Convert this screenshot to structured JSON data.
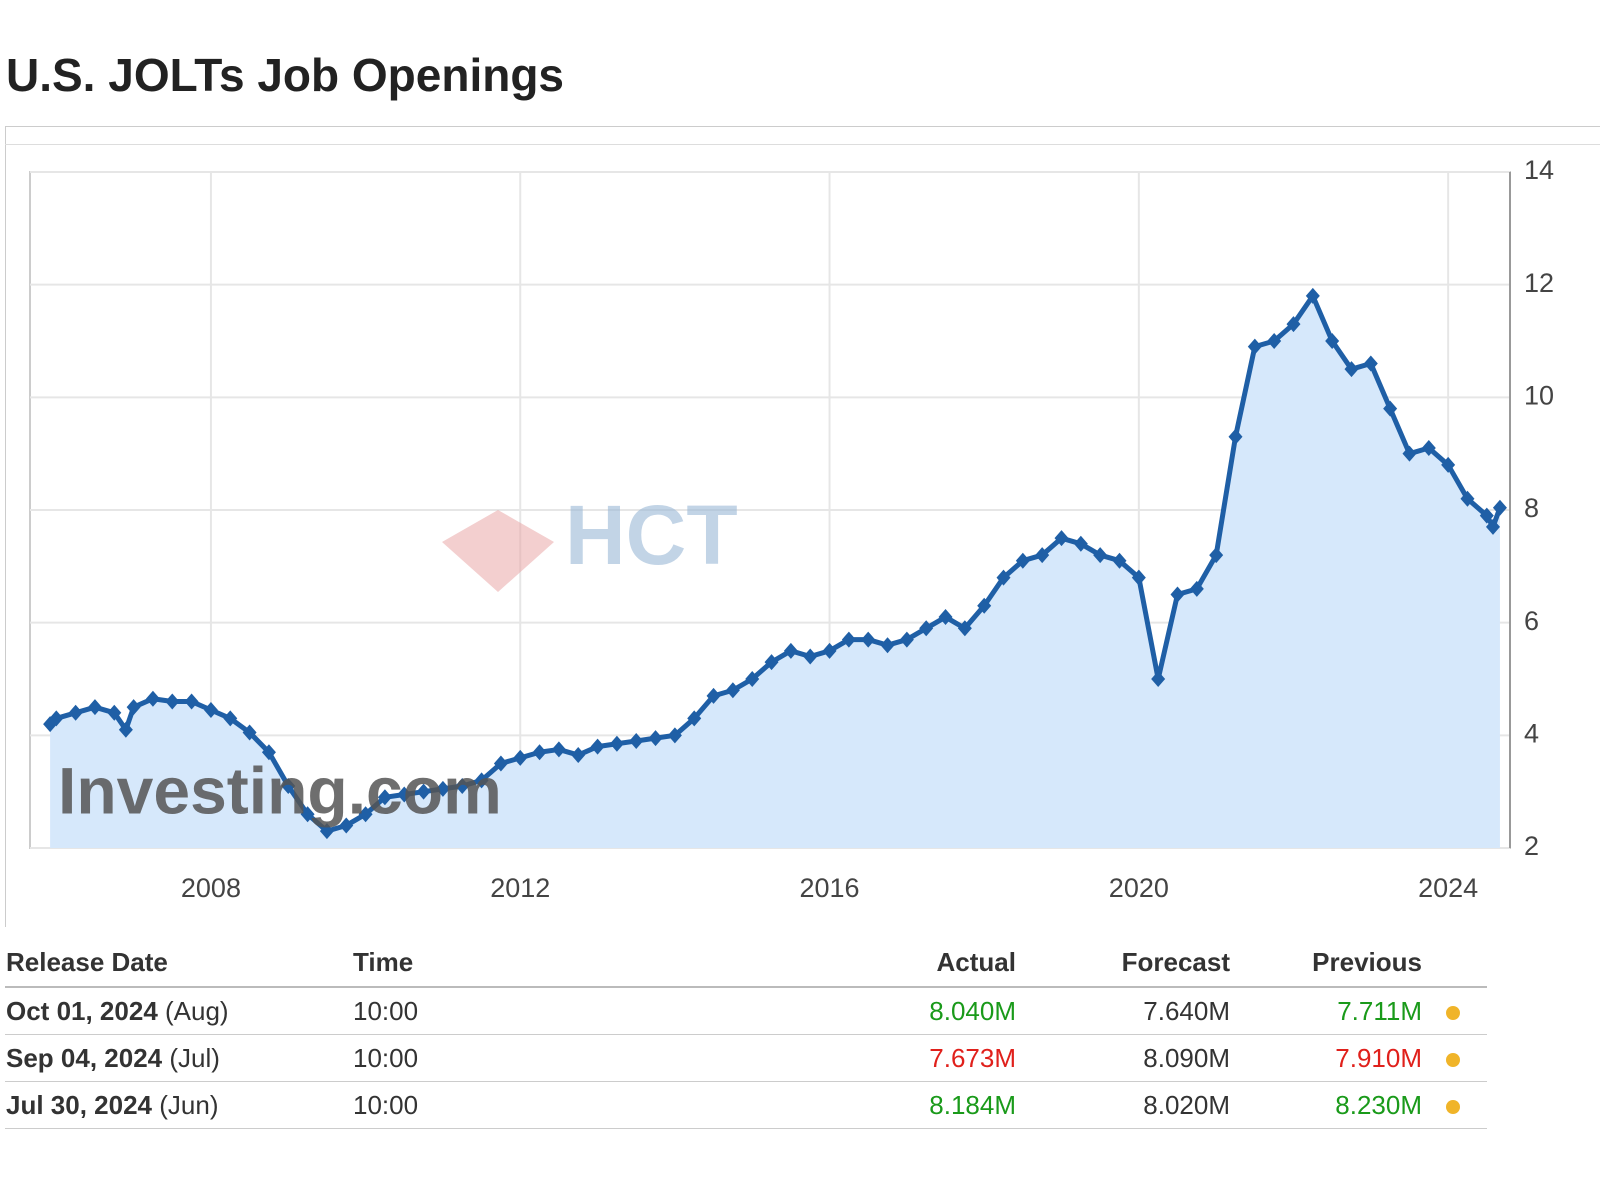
{
  "page_title": "U.S. JOLTs Job Openings",
  "chart_data": {
    "type": "line",
    "x": [
      2005.92,
      2006.0,
      2006.25,
      2006.5,
      2006.75,
      2006.9,
      2007.0,
      2007.25,
      2007.5,
      2007.75,
      2008.0,
      2008.25,
      2008.5,
      2008.75,
      2009.0,
      2009.25,
      2009.5,
      2009.75,
      2010.0,
      2010.25,
      2010.5,
      2010.75,
      2011.0,
      2011.25,
      2011.5,
      2011.75,
      2012.0,
      2012.25,
      2012.5,
      2012.75,
      2013.0,
      2013.25,
      2013.5,
      2013.75,
      2014.0,
      2014.25,
      2014.5,
      2014.75,
      2015.0,
      2015.25,
      2015.5,
      2015.75,
      2016.0,
      2016.25,
      2016.5,
      2016.75,
      2017.0,
      2017.25,
      2017.5,
      2017.75,
      2018.0,
      2018.25,
      2018.5,
      2018.75,
      2019.0,
      2019.25,
      2019.5,
      2019.75,
      2020.0,
      2020.25,
      2020.5,
      2020.75,
      2021.0,
      2021.25,
      2021.5,
      2021.75,
      2022.0,
      2022.25,
      2022.5,
      2022.75,
      2023.0,
      2023.25,
      2023.5,
      2023.75,
      2024.0,
      2024.25,
      2024.5,
      2024.58,
      2024.67
    ],
    "series": [
      {
        "name": "Job Openings",
        "color": "#1f5fa6",
        "fill": "#d6e8fb",
        "values": [
          4.2,
          4.3,
          4.4,
          4.5,
          4.4,
          4.1,
          4.5,
          4.65,
          4.6,
          4.6,
          4.45,
          4.3,
          4.05,
          3.7,
          3.1,
          2.6,
          2.3,
          2.4,
          2.6,
          2.9,
          2.95,
          3.0,
          3.05,
          3.1,
          3.2,
          3.5,
          3.6,
          3.7,
          3.75,
          3.65,
          3.8,
          3.85,
          3.9,
          3.95,
          4.0,
          4.3,
          4.7,
          4.8,
          5.0,
          5.3,
          5.5,
          5.4,
          5.5,
          5.7,
          5.7,
          5.6,
          5.7,
          5.9,
          6.1,
          5.9,
          6.3,
          6.8,
          7.1,
          7.2,
          7.5,
          7.4,
          7.2,
          7.1,
          6.8,
          5.0,
          6.5,
          6.6,
          7.2,
          9.3,
          10.9,
          11.0,
          11.3,
          11.8,
          11.0,
          10.5,
          10.6,
          9.8,
          9.0,
          9.1,
          8.8,
          8.2,
          7.9,
          7.7,
          8.04
        ]
      }
    ],
    "xlim": [
      2005.66,
      2024.8
    ],
    "xticks": [
      2008,
      2012,
      2016,
      2020,
      2024
    ],
    "ylim": [
      2,
      14
    ],
    "yticks": [
      2,
      4,
      6,
      8,
      10,
      12,
      14
    ],
    "grid": true,
    "watermarks": [
      "Investing.com",
      "HCT"
    ]
  },
  "table": {
    "headers": [
      "Release Date",
      "Time",
      "Actual",
      "Forecast",
      "Previous"
    ],
    "rows": [
      {
        "date": "Oct 01, 2024",
        "period": "(Aug)",
        "time": "10:00",
        "actual": "8.040M",
        "forecast": "7.640M",
        "previous": "7.711M",
        "actual_color": "#1a9a1a",
        "previous_color": "#1a9a1a"
      },
      {
        "date": "Sep 04, 2024",
        "period": "(Jul)",
        "time": "10:00",
        "actual": "7.673M",
        "forecast": "8.090M",
        "previous": "7.910M",
        "actual_color": "#e0201b",
        "previous_color": "#e0201b"
      },
      {
        "date": "Jul 30, 2024",
        "period": "(Jun)",
        "time": "10:00",
        "actual": "8.184M",
        "forecast": "8.020M",
        "previous": "8.230M",
        "actual_color": "#1a9a1a",
        "previous_color": "#1a9a1a"
      }
    ]
  }
}
